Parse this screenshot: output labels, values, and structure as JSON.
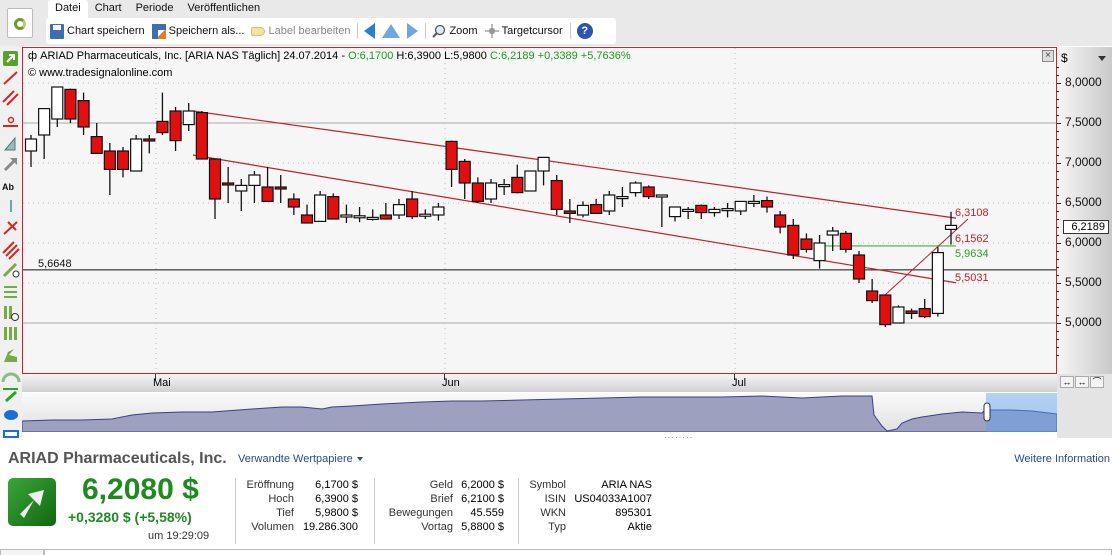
{
  "menu": {
    "tabs": [
      {
        "label": "Datei",
        "active": true
      },
      {
        "label": "Chart",
        "active": false
      },
      {
        "label": "Periode",
        "active": false
      },
      {
        "label": "Veröffentlichen",
        "active": false
      }
    ]
  },
  "toolbar": {
    "save_chart": "Chart speichern",
    "save_as": "Speichern als...",
    "edit_label": "Label bearbeiten",
    "zoom": "Zoom",
    "target_cursor": "Targetcursor",
    "help": "?"
  },
  "chart_header": {
    "title": "ARIAD Pharmaceuticals, Inc. [ARIA NAS  Täglich] 24.07.2014 - ",
    "open": "O:6,1700",
    "high_low": " H:6,3900 L:5,9800 ",
    "close_change": "C:6,2189 +0,3389 +5,7636%",
    "source": "www.tradesignalonline.com",
    "close_box": "×"
  },
  "y_axis": {
    "currency": "$",
    "last_price": "6,2189"
  },
  "x_axis": {
    "months": [
      {
        "label": "Mai",
        "x": 133
      },
      {
        "label": "Jun",
        "x": 422
      },
      {
        "label": "Jul",
        "x": 712
      }
    ]
  },
  "annotations": {
    "hline_label": "5,6648",
    "upper_channel_label": "6,3108",
    "trend_label": "6,1562",
    "green_label": "5,9634",
    "lower_channel_label": "5,5031"
  },
  "chart_data": {
    "type": "candlestick",
    "title": "ARIAD Pharmaceuticals, Inc. [ARIA NAS Täglich]",
    "xlabel": "",
    "ylabel": "$",
    "ylim": [
      4.7,
      8.3
    ],
    "yticks": [
      "8,0000",
      "7,5000",
      "7,0000",
      "6,5000",
      "6,0000",
      "5,5000",
      "5,0000"
    ],
    "xticks": [
      "Mai",
      "Jun",
      "Jul"
    ],
    "grid": true,
    "candles": [
      {
        "o": 7.15,
        "h": 7.35,
        "l": 6.95,
        "c": 7.3
      },
      {
        "o": 7.35,
        "h": 7.45,
        "l": 7.05,
        "c": 7.68
      },
      {
        "o": 7.55,
        "h": 7.95,
        "l": 7.45,
        "c": 7.95
      },
      {
        "o": 7.92,
        "h": 7.93,
        "l": 7.5,
        "c": 7.55
      },
      {
        "o": 7.78,
        "h": 7.88,
        "l": 7.35,
        "c": 7.45
      },
      {
        "o": 7.33,
        "h": 7.5,
        "l": 7.12,
        "c": 7.12
      },
      {
        "o": 7.15,
        "h": 7.25,
        "l": 6.6,
        "c": 6.92
      },
      {
        "o": 7.15,
        "h": 7.2,
        "l": 6.82,
        "c": 6.92
      },
      {
        "o": 6.9,
        "h": 7.35,
        "l": 6.92,
        "c": 7.3
      },
      {
        "o": 7.3,
        "h": 7.35,
        "l": 7.12,
        "c": 7.28
      },
      {
        "o": 7.52,
        "h": 7.88,
        "l": 7.35,
        "c": 7.38
      },
      {
        "o": 7.65,
        "h": 7.7,
        "l": 7.15,
        "c": 7.28
      },
      {
        "o": 7.48,
        "h": 7.75,
        "l": 7.4,
        "c": 7.65
      },
      {
        "o": 7.63,
        "h": 7.65,
        "l": 7.1,
        "c": 7.05
      },
      {
        "o": 7.05,
        "h": 7.05,
        "l": 6.3,
        "c": 6.55
      },
      {
        "o": 6.75,
        "h": 6.95,
        "l": 6.5,
        "c": 6.73
      },
      {
        "o": 6.65,
        "h": 6.8,
        "l": 6.4,
        "c": 6.72
      },
      {
        "o": 6.72,
        "h": 6.9,
        "l": 6.5,
        "c": 6.85
      },
      {
        "o": 6.7,
        "h": 6.95,
        "l": 6.62,
        "c": 6.52
      },
      {
        "o": 6.7,
        "h": 6.85,
        "l": 6.5,
        "c": 6.68
      },
      {
        "o": 6.55,
        "h": 6.62,
        "l": 6.35,
        "c": 6.45
      },
      {
        "o": 6.35,
        "h": 6.48,
        "l": 6.25,
        "c": 6.25
      },
      {
        "o": 6.27,
        "h": 6.65,
        "l": 6.28,
        "c": 6.6
      },
      {
        "o": 6.58,
        "h": 6.62,
        "l": 6.35,
        "c": 6.3
      },
      {
        "o": 6.35,
        "h": 6.48,
        "l": 6.25,
        "c": 6.35
      },
      {
        "o": 6.34,
        "h": 6.45,
        "l": 6.26,
        "c": 6.34
      },
      {
        "o": 6.32,
        "h": 6.42,
        "l": 6.28,
        "c": 6.32
      },
      {
        "o": 6.35,
        "h": 6.5,
        "l": 6.3,
        "c": 6.3
      },
      {
        "o": 6.35,
        "h": 6.55,
        "l": 6.3,
        "c": 6.48
      },
      {
        "o": 6.55,
        "h": 6.65,
        "l": 6.3,
        "c": 6.33
      },
      {
        "o": 6.36,
        "h": 6.42,
        "l": 6.3,
        "c": 6.36
      },
      {
        "o": 6.35,
        "h": 6.5,
        "l": 6.28,
        "c": 6.45
      },
      {
        "o": 7.27,
        "h": 7.28,
        "l": 6.7,
        "c": 6.92
      },
      {
        "o": 7.02,
        "h": 7.05,
        "l": 6.55,
        "c": 6.75
      },
      {
        "o": 6.75,
        "h": 6.82,
        "l": 6.5,
        "c": 6.52
      },
      {
        "o": 6.55,
        "h": 6.8,
        "l": 6.5,
        "c": 6.75
      },
      {
        "o": 6.73,
        "h": 6.8,
        "l": 6.6,
        "c": 6.73
      },
      {
        "o": 6.82,
        "h": 6.98,
        "l": 6.62,
        "c": 6.63
      },
      {
        "o": 6.65,
        "h": 6.9,
        "l": 6.65,
        "c": 6.9
      },
      {
        "o": 6.9,
        "h": 7.05,
        "l": 6.72,
        "c": 7.07
      },
      {
        "o": 6.78,
        "h": 6.85,
        "l": 6.35,
        "c": 6.42
      },
      {
        "o": 6.4,
        "h": 6.55,
        "l": 6.25,
        "c": 6.37
      },
      {
        "o": 6.35,
        "h": 6.52,
        "l": 6.32,
        "c": 6.47
      },
      {
        "o": 6.48,
        "h": 6.55,
        "l": 6.38,
        "c": 6.37
      },
      {
        "o": 6.4,
        "h": 6.65,
        "l": 6.35,
        "c": 6.6
      },
      {
        "o": 6.58,
        "h": 6.7,
        "l": 6.45,
        "c": 6.58
      },
      {
        "o": 6.63,
        "h": 6.77,
        "l": 6.58,
        "c": 6.75
      },
      {
        "o": 6.7,
        "h": 6.72,
        "l": 6.55,
        "c": 6.58
      },
      {
        "o": 6.6,
        "h": 6.6,
        "l": 6.2,
        "c": 6.6
      },
      {
        "o": 6.33,
        "h": 6.45,
        "l": 6.27,
        "c": 6.45
      },
      {
        "o": 6.42,
        "h": 6.45,
        "l": 6.3,
        "c": 6.42
      },
      {
        "o": 6.47,
        "h": 6.48,
        "l": 6.3,
        "c": 6.38
      },
      {
        "o": 6.38,
        "h": 6.45,
        "l": 6.33,
        "c": 6.42
      },
      {
        "o": 6.43,
        "h": 6.5,
        "l": 6.32,
        "c": 6.43
      },
      {
        "o": 6.4,
        "h": 6.5,
        "l": 6.35,
        "c": 6.52
      },
      {
        "o": 6.52,
        "h": 6.6,
        "l": 6.45,
        "c": 6.52
      },
      {
        "o": 6.53,
        "h": 6.58,
        "l": 6.38,
        "c": 6.45
      },
      {
        "o": 6.35,
        "h": 6.4,
        "l": 6.12,
        "c": 6.2
      },
      {
        "o": 6.22,
        "h": 6.3,
        "l": 5.8,
        "c": 5.85
      },
      {
        "o": 6.05,
        "h": 6.12,
        "l": 5.88,
        "c": 5.92
      },
      {
        "o": 5.78,
        "h": 6.1,
        "l": 5.68,
        "c": 6.0
      },
      {
        "o": 6.1,
        "h": 6.2,
        "l": 5.9,
        "c": 6.15
      },
      {
        "o": 6.12,
        "h": 6.15,
        "l": 5.88,
        "c": 5.92
      },
      {
        "o": 5.85,
        "h": 5.9,
        "l": 5.5,
        "c": 5.55
      },
      {
        "o": 5.4,
        "h": 5.55,
        "l": 5.25,
        "c": 5.28
      },
      {
        "o": 5.35,
        "h": 5.35,
        "l": 4.95,
        "c": 4.98
      },
      {
        "o": 5.0,
        "h": 5.22,
        "l": 5.0,
        "c": 5.2
      },
      {
        "o": 5.15,
        "h": 5.18,
        "l": 5.05,
        "c": 5.12
      },
      {
        "o": 5.18,
        "h": 5.3,
        "l": 5.06,
        "c": 5.08
      },
      {
        "o": 5.12,
        "h": 5.95,
        "l": 5.08,
        "c": 5.88
      },
      {
        "o": 6.17,
        "h": 6.39,
        "l": 5.98,
        "c": 6.22
      }
    ],
    "hline": {
      "value": 5.6648,
      "label": "5,6648"
    },
    "upper_channel": {
      "start": 7.65,
      "end": 6.3108,
      "label": "6,3108"
    },
    "lower_channel": {
      "start": 7.1,
      "end": 5.5031,
      "label": "5,5031"
    },
    "green_line": {
      "value": 5.9634,
      "label": "5,9634"
    },
    "trend_line": {
      "start": 5.35,
      "end": 6.1562,
      "label": "6,1562"
    }
  },
  "quote": {
    "company": "ARIAD Pharmaceuticals, Inc.",
    "related": "Verwandte Wertpapiere",
    "further_info": "Weitere Information",
    "price": "6,2080 $",
    "change": "+0,3280 $ (+5,58%)",
    "time": "um 19:29:09",
    "col1": [
      {
        "k": "Eröffnung",
        "v": "6,1700 $"
      },
      {
        "k": "Hoch",
        "v": "6,3900 $"
      },
      {
        "k": "Tief",
        "v": "5,9800 $"
      },
      {
        "k": "Volumen",
        "v": "19.286.300"
      }
    ],
    "col2": [
      {
        "k": "Geld",
        "v": "6,2000 $"
      },
      {
        "k": "Brief",
        "v": "6,2100 $"
      },
      {
        "k": "Bewegungen",
        "v": "45.559"
      },
      {
        "k": "Vortag",
        "v": "5,8800 $"
      }
    ],
    "col3": [
      {
        "k": "Symbol",
        "v": "ARIA NAS"
      },
      {
        "k": "ISIN",
        "v": "US04033A1007"
      },
      {
        "k": "WKN",
        "v": "895301"
      },
      {
        "k": "Typ",
        "v": "Aktie"
      }
    ]
  }
}
